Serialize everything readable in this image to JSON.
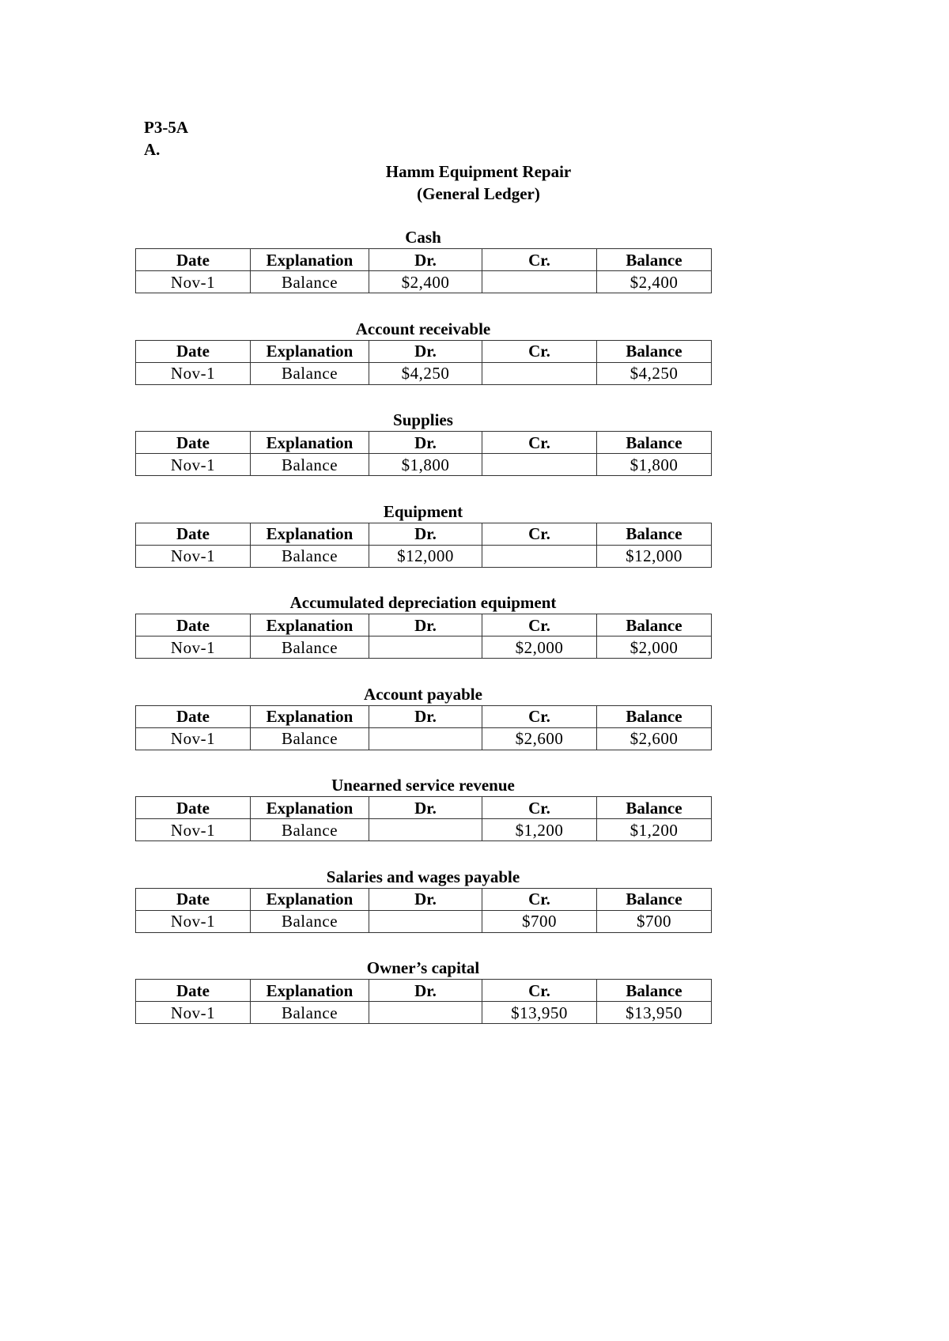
{
  "label": "P3-5A",
  "part": "A.",
  "company": "Hamm Equipment Repair",
  "subtitle": "(General Ledger)",
  "columns": [
    "Date",
    "Explanation",
    "Dr.",
    "Cr.",
    "Balance"
  ],
  "accounts": [
    {
      "name": "Cash",
      "row": [
        "Nov-1",
        "Balance",
        "$2,400",
        "",
        "$2,400"
      ]
    },
    {
      "name": "Account receivable",
      "row": [
        "Nov-1",
        "Balance",
        "$4,250",
        "",
        "$4,250"
      ]
    },
    {
      "name": "Supplies",
      "row": [
        "Nov-1",
        "Balance",
        "$1,800",
        "",
        "$1,800"
      ]
    },
    {
      "name": "Equipment",
      "row": [
        "Nov-1",
        "Balance",
        "$12,000",
        "",
        "$12,000"
      ]
    },
    {
      "name": "Accumulated depreciation equipment",
      "row": [
        "Nov-1",
        "Balance",
        "",
        "$2,000",
        "$2,000"
      ]
    },
    {
      "name": "Account payable",
      "row": [
        "Nov-1",
        "Balance",
        "",
        "$2,600",
        "$2,600"
      ]
    },
    {
      "name": "Unearned service revenue",
      "row": [
        "Nov-1",
        "Balance",
        "",
        "$1,200",
        "$1,200"
      ]
    },
    {
      "name": "Salaries and wages payable",
      "row": [
        "Nov-1",
        "Balance",
        "",
        "$700",
        "$700"
      ]
    },
    {
      "name": "Owner’s capital",
      "row": [
        "Nov-1",
        "Balance",
        "",
        "$13,950",
        "$13,950"
      ]
    }
  ]
}
